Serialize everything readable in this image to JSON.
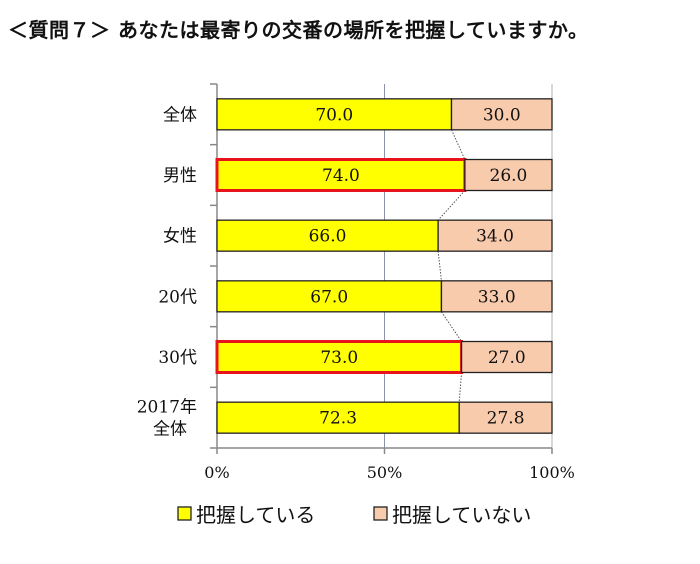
{
  "title": "＜質問７＞ あなたは最寄りの交番の場所を把握していますか。",
  "chart_data": {
    "type": "bar",
    "orientation": "horizontal",
    "stacked": "percent",
    "categories": [
      "全体",
      "男性",
      "女性",
      "20代",
      "30代",
      "2017年\n全体"
    ],
    "series": [
      {
        "name": "把握している",
        "values": [
          70.0,
          74.0,
          66.0,
          67.0,
          73.0,
          72.3
        ],
        "color": "#ffff00"
      },
      {
        "name": "把握していない",
        "values": [
          30.0,
          26.0,
          34.0,
          33.0,
          27.0,
          27.8
        ],
        "color": "#f8cbad"
      }
    ],
    "data_labels": [
      [
        "70.0",
        "74.0",
        "66.0",
        "67.0",
        "73.0",
        "72.3"
      ],
      [
        "30.0",
        "26.0",
        "34.0",
        "33.0",
        "27.0",
        "27.8"
      ]
    ],
    "highlighted_categories": [
      "男性",
      "30代"
    ],
    "highlight_color": "#e8141b",
    "xlim": [
      0,
      100
    ],
    "xticks": [
      "0%",
      "50%",
      "100%"
    ],
    "grid": "vertical at 50%",
    "series_lines": true,
    "legend": "bottom"
  }
}
